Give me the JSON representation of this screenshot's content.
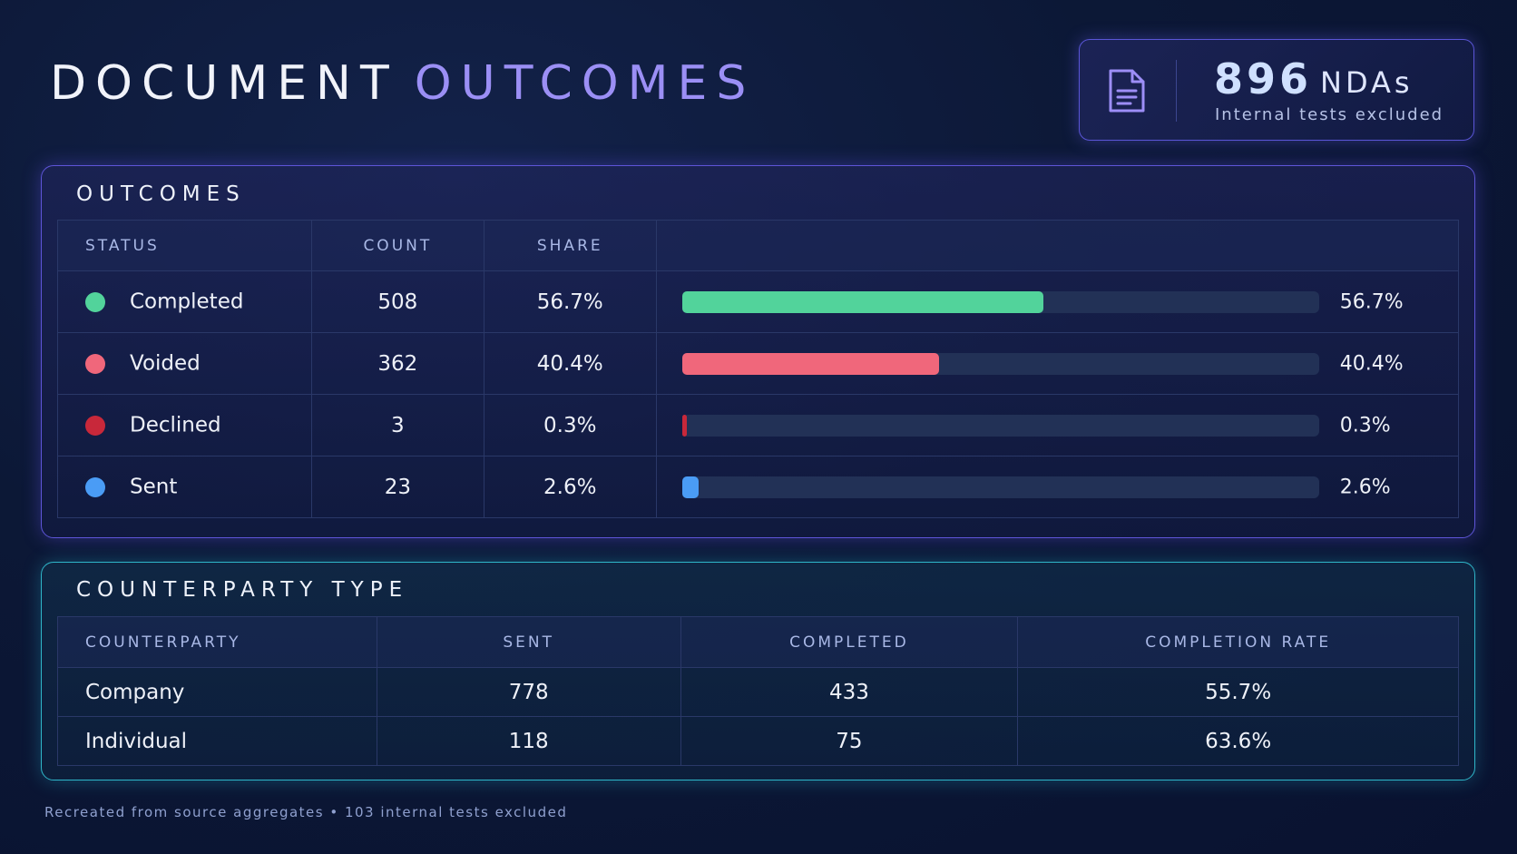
{
  "header": {
    "title_main": "DOCUMENT",
    "title_accent": "OUTCOMES"
  },
  "summary": {
    "icon": "document-icon",
    "count": "896",
    "unit": "NDAs",
    "subtitle": "Internal tests excluded"
  },
  "outcomes": {
    "title": "OUTCOMES",
    "columns": [
      "STATUS",
      "COUNT",
      "SHARE"
    ],
    "rows": [
      {
        "status": "Completed",
        "count": "508",
        "share": "56.7%",
        "fraction": 0.567,
        "color": "#52d39b"
      },
      {
        "status": "Voided",
        "count": "362",
        "share": "40.4%",
        "fraction": 0.404,
        "color": "#f0677b"
      },
      {
        "status": "Declined",
        "count": "3",
        "share": "0.3%",
        "fraction": 0.003,
        "color": "#c8283a"
      },
      {
        "status": "Sent",
        "count": "23",
        "share": "2.6%",
        "fraction": 0.026,
        "color": "#4a9cf5"
      }
    ]
  },
  "counterparty": {
    "title": "COUNTERPARTY TYPE",
    "columns": [
      "COUNTERPARTY",
      "SENT",
      "COMPLETED",
      "COMPLETION RATE"
    ],
    "rows": [
      {
        "counterparty": "Company",
        "sent": "778",
        "completed": "433",
        "rate": "55.7%"
      },
      {
        "counterparty": "Individual",
        "sent": "118",
        "completed": "75",
        "rate": "63.6%"
      }
    ]
  },
  "footer": {
    "note": "Recreated from source aggregates • 103 internal tests excluded"
  }
}
